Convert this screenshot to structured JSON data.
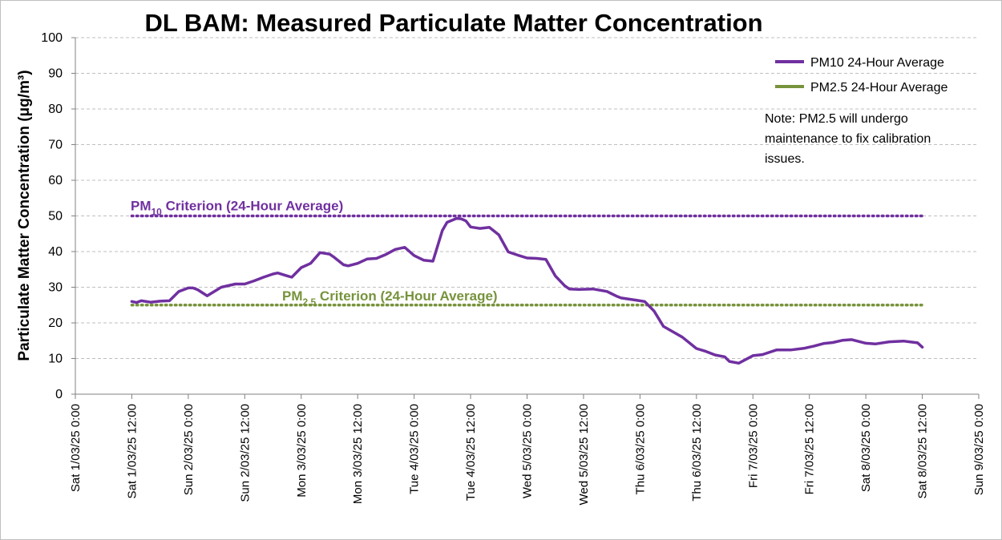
{
  "chart_data": {
    "type": "line",
    "title": "DL BAM: Measured Particulate Matter Concentration",
    "ylabel": "Particulate Matter Concentration (μg/m³)",
    "xlabel": "",
    "ylim": [
      0,
      100
    ],
    "yticks": [
      "0",
      "10",
      "20",
      "30",
      "40",
      "50",
      "60",
      "70",
      "80",
      "90",
      "100"
    ],
    "xlim": [
      "Sat 1/03/25 0:00",
      "Sun 9/03/25 0:00"
    ],
    "xticks": [
      "Sat 1/03/25 0:00",
      "Sat 1/03/25 12:00",
      "Sun 2/03/25 0:00",
      "Sun 2/03/25 12:00",
      "Mon 3/03/25 0:00",
      "Mon 3/03/25 12:00",
      "Tue 4/03/25 0:00",
      "Tue 4/03/25 12:00",
      "Wed 5/03/25 0:00",
      "Wed 5/03/25 12:00",
      "Thu 6/03/25 0:00",
      "Thu 6/03/25 12:00",
      "Fri 7/03/25 0:00",
      "Fri 7/03/25 12:00",
      "Sat 8/03/25 0:00",
      "Sat 8/03/25 12:00",
      "Sun 9/03/25 0:00"
    ],
    "grid": true,
    "legend_position": "top-right",
    "series": [
      {
        "name": "PM10 24-Hour Average",
        "color": "#7030a0",
        "x": [
          "Sat 1/03/25 12:00",
          "Sat 1/03/25 13:00",
          "Sat 1/03/25 14:00",
          "Sat 1/03/25 16:00",
          "Sat 1/03/25 18:00",
          "Sat 1/03/25 20:00",
          "Sat 1/03/25 22:00",
          "Sun 2/03/25 0:00",
          "Sun 2/03/25 1:00",
          "Sun 2/03/25 2:00",
          "Sun 2/03/25 4:00",
          "Sun 2/03/25 7:00",
          "Sun 2/03/25 10:00",
          "Sun 2/03/25 12:00",
          "Sun 2/03/25 14:00",
          "Sun 2/03/25 16:00",
          "Sun 2/03/25 18:00",
          "Sun 2/03/25 19:00",
          "Sun 2/03/25 21:00",
          "Sun 2/03/25 22:00",
          "Mon 3/03/25 0:00",
          "Mon 3/03/25 2:00",
          "Mon 3/03/25 4:00",
          "Mon 3/03/25 6:00",
          "Mon 3/03/25 7:00",
          "Mon 3/03/25 9:00",
          "Mon 3/03/25 10:00",
          "Mon 3/03/25 12:00",
          "Mon 3/03/25 14:00",
          "Mon 3/03/25 16:00",
          "Mon 3/03/25 18:00",
          "Mon 3/03/25 20:00",
          "Mon 3/03/25 22:00",
          "Tue 4/03/25 0:00",
          "Tue 4/03/25 2:00",
          "Tue 4/03/25 4:00",
          "Tue 4/03/25 6:00",
          "Tue 4/03/25 7:00",
          "Tue 4/03/25 9:00",
          "Tue 4/03/25 10:00",
          "Tue 4/03/25 11:00",
          "Tue 4/03/25 12:00",
          "Tue 4/03/25 14:00",
          "Tue 4/03/25 16:00",
          "Tue 4/03/25 18:00",
          "Tue 4/03/25 20:00",
          "Tue 4/03/25 22:00",
          "Wed 5/03/25 0:00",
          "Wed 5/03/25 2:00",
          "Wed 5/03/25 4:00",
          "Wed 5/03/25 6:00",
          "Wed 5/03/25 8:00",
          "Wed 5/03/25 9:00",
          "Wed 5/03/25 11:00",
          "Wed 5/03/25 14:00",
          "Wed 5/03/25 17:00",
          "Wed 5/03/25 19:00",
          "Wed 5/03/25 20:00",
          "Wed 5/03/25 23:00",
          "Thu 6/03/25 1:00",
          "Thu 6/03/25 3:00",
          "Thu 6/03/25 5:00",
          "Thu 6/03/25 7:00",
          "Thu 6/03/25 9:00",
          "Thu 6/03/25 12:00",
          "Thu 6/03/25 14:00",
          "Thu 6/03/25 16:00",
          "Thu 6/03/25 18:00",
          "Thu 6/03/25 19:00",
          "Thu 6/03/25 21:00",
          "Fri 7/03/25 0:00",
          "Fri 7/03/25 2:00",
          "Fri 7/03/25 5:00",
          "Fri 7/03/25 8:00",
          "Fri 7/03/25 11:00",
          "Fri 7/03/25 13:00",
          "Fri 7/03/25 15:00",
          "Fri 7/03/25 17:00",
          "Fri 7/03/25 19:00",
          "Fri 7/03/25 21:00",
          "Sat 8/03/25 0:00",
          "Sat 8/03/25 2:00",
          "Sat 8/03/25 5:00",
          "Sat 8/03/25 8:00",
          "Sat 8/03/25 11:00",
          "Sat 8/03/25 12:00"
        ],
        "y": [
          26,
          25.7,
          26.2,
          25.8,
          26.1,
          26.2,
          28.8,
          29.8,
          29.8,
          29.3,
          27.6,
          30,
          30.9,
          30.9,
          31.8,
          32.8,
          33.7,
          34,
          33.2,
          32.8,
          35.5,
          36.7,
          39.7,
          39.3,
          38.4,
          36.3,
          36,
          36.7,
          37.9,
          38.1,
          39.2,
          40.6,
          41.2,
          38.9,
          37.6,
          37.3,
          45.9,
          48.2,
          49.3,
          49.2,
          48.6,
          46.9,
          46.5,
          46.8,
          44.7,
          39.9,
          39,
          38.2,
          38.1,
          37.8,
          33.2,
          30.4,
          29.5,
          29.4,
          29.5,
          28.8,
          27.5,
          27,
          26.4,
          26,
          23.3,
          19,
          17.5,
          16,
          12.8,
          12,
          11,
          10.5,
          9.2,
          8.7,
          10.8,
          11.1,
          12.4,
          12.4,
          12.9,
          13.5,
          14.2,
          14.5,
          15.1,
          15.3,
          14.3,
          14.1,
          14.7,
          14.9,
          14.4,
          13.2
        ]
      },
      {
        "name": "PM2.5 24-Hour Average",
        "color": "#77933c",
        "x": [],
        "y": []
      }
    ],
    "criteria": [
      {
        "label_main": "PM",
        "label_sub": "10",
        "label_rest": " Criterion (24-Hour Average)",
        "value": 50,
        "color": "#7030a0"
      },
      {
        "label_main": "PM",
        "label_sub": "2.5",
        "label_rest": " Criterion (24-Hour Average)",
        "value": 25,
        "color": "#77933c"
      }
    ],
    "note": [
      "Note: PM2.5 will undergo",
      "maintenance to fix calibration",
      "issues."
    ]
  }
}
